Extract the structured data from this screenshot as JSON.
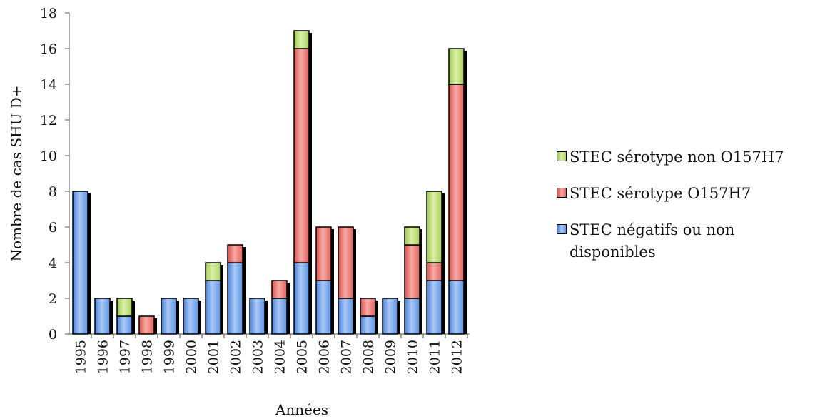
{
  "chart_data": {
    "type": "bar",
    "stacked": true,
    "title": "",
    "xlabel": "Années",
    "ylabel": "Nombre de cas SHU D+",
    "ylim": [
      0,
      18
    ],
    "yticks": [
      0,
      2,
      4,
      6,
      8,
      10,
      12,
      14,
      16,
      18
    ],
    "grid": false,
    "legend_position": "right",
    "categories": [
      "1995",
      "1996",
      "1997",
      "1998",
      "1999",
      "2000",
      "2001",
      "2002",
      "2003",
      "2004",
      "2005",
      "2006",
      "2007",
      "2008",
      "2009",
      "2010",
      "2011",
      "2012"
    ],
    "series": [
      {
        "name": "STEC négatifs ou non disponibles",
        "color": "#6f9fe8",
        "values": [
          8,
          2,
          1,
          0,
          2,
          2,
          3,
          4,
          2,
          2,
          4,
          3,
          2,
          1,
          2,
          2,
          3,
          3
        ]
      },
      {
        "name": "STEC sérotype O157H7",
        "color": "#e8706c",
        "values": [
          0,
          0,
          0,
          1,
          0,
          0,
          0,
          1,
          0,
          1,
          12,
          3,
          4,
          1,
          0,
          3,
          1,
          11
        ]
      },
      {
        "name": "STEC sérotype non O157H7",
        "color": "#b5d96c",
        "values": [
          0,
          0,
          1,
          0,
          0,
          0,
          1,
          0,
          0,
          0,
          1,
          0,
          0,
          0,
          0,
          1,
          4,
          2
        ]
      }
    ]
  }
}
